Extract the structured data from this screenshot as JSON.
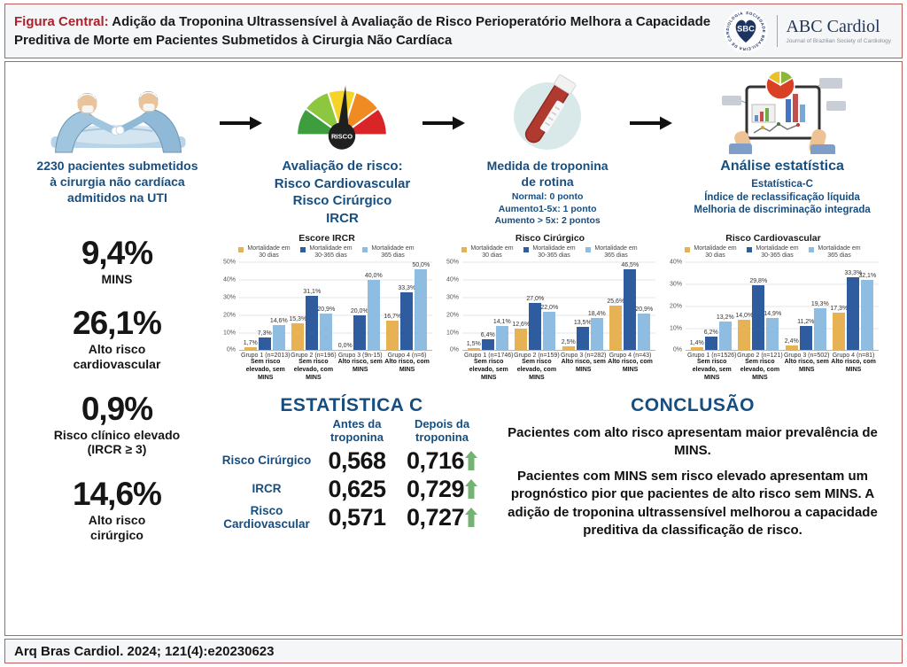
{
  "header": {
    "title_prefix": "Figura Central:",
    "title_rest": " Adição da Troponina Ultrassensível à Avaliação de Risco Perioperatório Melhora a Capacidade Preditiva de Morte em Pacientes Submetidos à Cirurgia Não Cardíaca",
    "logo": {
      "ring_text": "SOCIEDADE BRASILEIRA DE CARDIOLOGIA",
      "sbc": "SBC",
      "journal": "ABC Cardiol",
      "journal_sub": "Journal of Brazilian Society of Cardiology"
    }
  },
  "steps": {
    "s1": {
      "l1": "2230 pacientes submetidos",
      "l2": "à cirurgia não cardíaca",
      "l3": "admitidos na UTI"
    },
    "s2": {
      "gauge_label": "RISCO",
      "l1": "Avaliação de risco:",
      "l2": "Risco Cardiovascular",
      "l3": "Risco Cirúrgico",
      "l4": "IRCR"
    },
    "s3": {
      "l1": "Medida de troponina",
      "l2": "de rotina",
      "sub1": "Normal: 0 ponto",
      "sub2": "Aumento1-5x: 1 ponto",
      "sub3": "Aumento > 5x: 2 pontos"
    },
    "s4": {
      "l1": "Análise estatística",
      "sub1": "Estatística-C",
      "sub2": "Índice de reclassificação líquida",
      "sub3": "Melhoria de discriminação integrada"
    }
  },
  "stats": [
    {
      "value": "9,4%",
      "label1": "MINS",
      "label2": ""
    },
    {
      "value": "26,1%",
      "label1": "Alto risco",
      "label2": "cardiovascular"
    },
    {
      "value": "0,9%",
      "label1": "Risco clínico elevado",
      "label2": "(IRCR ≥ 3)"
    },
    {
      "value": "14,6%",
      "label1": "Alto risco",
      "label2": "cirúrgico"
    }
  ],
  "chart_data": [
    {
      "type": "bar",
      "title": "Escore IRCR",
      "ylim": [
        0,
        50
      ],
      "yticks": [
        "50%",
        "40%",
        "30%",
        "20%",
        "10%",
        "0%"
      ],
      "legend_position": "top",
      "series": [
        {
          "name": "Mortalidade em 30 dias",
          "color": "#e6b254"
        },
        {
          "name": "Mortalidade em 30-365 dias",
          "color": "#2e5c9e"
        },
        {
          "name": "Mortalidade em 365 dias",
          "color": "#8fbce1"
        }
      ],
      "groups": [
        {
          "line1": "Grupo 1 (n=2013)",
          "line2": "Sem risco elevado, sem MINS",
          "values": [
            1.7,
            7.3,
            14.6
          ],
          "labels": [
            "1,7%",
            "7,3%",
            "14,6%"
          ]
        },
        {
          "line1": "Grupo 2 (n=196)",
          "line2": "Sem risco elevado, com MINS",
          "values": [
            15.3,
            31.1,
            20.9
          ],
          "labels": [
            "15,3%",
            "31,1%",
            "20,9%"
          ]
        },
        {
          "line1": "Grupo 3 (9n-15)",
          "line2": "Alto risco, sem MINS",
          "values": [
            0.0,
            20.0,
            40.0
          ],
          "labels": [
            "0,0%",
            "20,0%",
            "40,0%"
          ]
        },
        {
          "line1": "Grupo 4 (n=6)",
          "line2": "Alto risco, com MINS",
          "values": [
            16.7,
            33.3,
            50.0
          ],
          "labels": [
            "16,7%",
            "33,3%",
            "50,0%"
          ]
        }
      ]
    },
    {
      "type": "bar",
      "title": "Risco Cirúrgico",
      "ylim": [
        0,
        50
      ],
      "yticks": [
        "50%",
        "40%",
        "30%",
        "20%",
        "10%",
        "0%"
      ],
      "legend_position": "top",
      "series": [
        {
          "name": "Mortalidade em 30 dias",
          "color": "#e6b254"
        },
        {
          "name": "Mortalidade em 30-365 dias",
          "color": "#2e5c9e"
        },
        {
          "name": "Mortalidade em 365 dias",
          "color": "#8fbce1"
        }
      ],
      "groups": [
        {
          "line1": "Grupo 1 (n=1746)",
          "line2": "Sem risco elevado, sem MINS",
          "values": [
            1.5,
            6.4,
            14.1
          ],
          "labels": [
            "1,5%",
            "6,4%",
            "14,1%"
          ]
        },
        {
          "line1": "Grupo 2 (n=159)",
          "line2": "Sem risco elevado, com MINS",
          "values": [
            12.6,
            27.0,
            22.0
          ],
          "labels": [
            "12,6%",
            "27,0%",
            "22,0%"
          ]
        },
        {
          "line1": "Grupo 3 (n=282)",
          "line2": "Alto risco, sem MINS",
          "values": [
            2.5,
            13.5,
            18.4
          ],
          "labels": [
            "2,5%",
            "13,5%",
            "18,4%"
          ]
        },
        {
          "line1": "Grupo 4 (n=43)",
          "line2": "Alto risco, com MINS",
          "values": [
            25.6,
            46.5,
            20.9
          ],
          "labels": [
            "25,6%",
            "46,5%",
            "20,9%"
          ]
        }
      ]
    },
    {
      "type": "bar",
      "title": "Risco Cardiovascular",
      "ylim": [
        0,
        40
      ],
      "yticks": [
        "40%",
        "30%",
        "20%",
        "10%",
        "0%"
      ],
      "legend_position": "top",
      "series": [
        {
          "name": "Mortalidade em 30 dias",
          "color": "#e6b254"
        },
        {
          "name": "Mortalidade em 30-365 dias",
          "color": "#2e5c9e"
        },
        {
          "name": "Mortalidade em 365 dias",
          "color": "#8fbce1"
        }
      ],
      "groups": [
        {
          "line1": "Grupo 1 (n=1526)",
          "line2": "Sem risco elevado, sem MINS",
          "values": [
            1.4,
            6.2,
            13.2
          ],
          "labels": [
            "1,4%",
            "6,2%",
            "13,2%"
          ]
        },
        {
          "line1": "Grupo 2 (n=121)",
          "line2": "Sem risco elevado, com MINS",
          "values": [
            14.0,
            29.8,
            14.9
          ],
          "labels": [
            "14,0%",
            "29,8%",
            "14,9%"
          ]
        },
        {
          "line1": "Grupo 3 (n=502)",
          "line2": "Alto risco, sem MINS",
          "values": [
            2.4,
            11.2,
            19.3
          ],
          "labels": [
            "2,4%",
            "11,2%",
            "19,3%"
          ]
        },
        {
          "line1": "Grupo 4 (n=81)",
          "line2": "Alto risco, com MINS",
          "values": [
            17.3,
            33.3,
            32.1
          ],
          "labels": [
            "17,3%",
            "33,3%",
            "32,1%"
          ]
        }
      ]
    }
  ],
  "statistic_c": {
    "heading": "ESTATÍSTICA C",
    "col_before": "Antes da troponina",
    "col_after": "Depois da troponina",
    "rows": [
      {
        "label": "Risco Cirúrgico",
        "before": "0,568",
        "after": "0,716"
      },
      {
        "label": "IRCR",
        "before": "0,625",
        "after": "0,729"
      },
      {
        "label": "Risco Cardiovascular",
        "before": "0,571",
        "after": "0,727"
      }
    ]
  },
  "conclusion": {
    "heading": "CONCLUSÃO",
    "p1": "Pacientes com alto risco apresentam maior prevalência de MINS.",
    "p2": "Pacientes com MINS sem risco elevado apresentam um prognóstico pior que pacientes de alto risco sem MINS. A adição de troponina ultrassensível melhorou a capacidade preditiva da classificação de risco."
  },
  "footer": {
    "citation": "Arq Bras Cardiol. 2024; 121(4):e20230623"
  },
  "colors": {
    "accent_red": "#a8232a",
    "border": "#c25b5b",
    "dark_blue_text": "#174e80",
    "bar_yellow": "#e6b254",
    "bar_dark_blue": "#2e5c9e",
    "bar_light_blue": "#8fbce1",
    "arrow_green": "#74b374"
  }
}
